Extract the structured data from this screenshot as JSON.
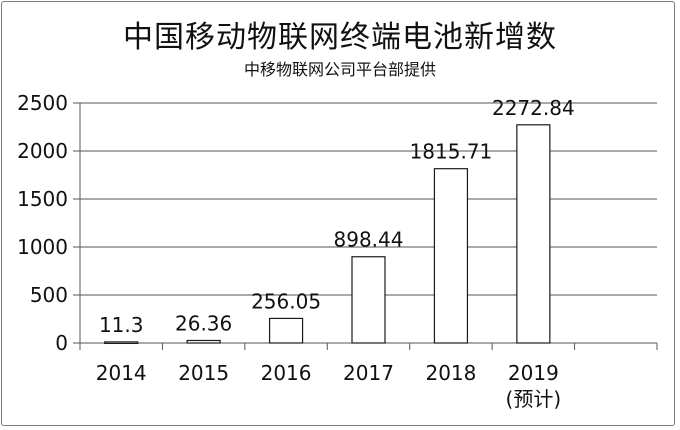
{
  "chart_data": {
    "type": "bar",
    "title": "中国移动物联网终端电池新增数",
    "subtitle": "中移物联网公司平台部提供",
    "categories": [
      "2014",
      "2015",
      "2016",
      "2017",
      "2018",
      "2019"
    ],
    "category_notes": [
      "",
      "",
      "",
      "",
      "",
      "(预计)"
    ],
    "values": [
      11.3,
      26.36,
      256.05,
      898.44,
      1815.71,
      2272.84
    ],
    "value_labels": [
      "11.3",
      "26.36",
      "256.05",
      "898.44",
      "1815.71",
      "2272.84"
    ],
    "y_ticks": [
      0,
      500,
      1000,
      1500,
      2000,
      2500
    ],
    "ylim": [
      0,
      2500
    ],
    "grid": true,
    "legend": "none",
    "bar_fill": "#ffffff",
    "bar_stroke": "#1a1a1a"
  }
}
